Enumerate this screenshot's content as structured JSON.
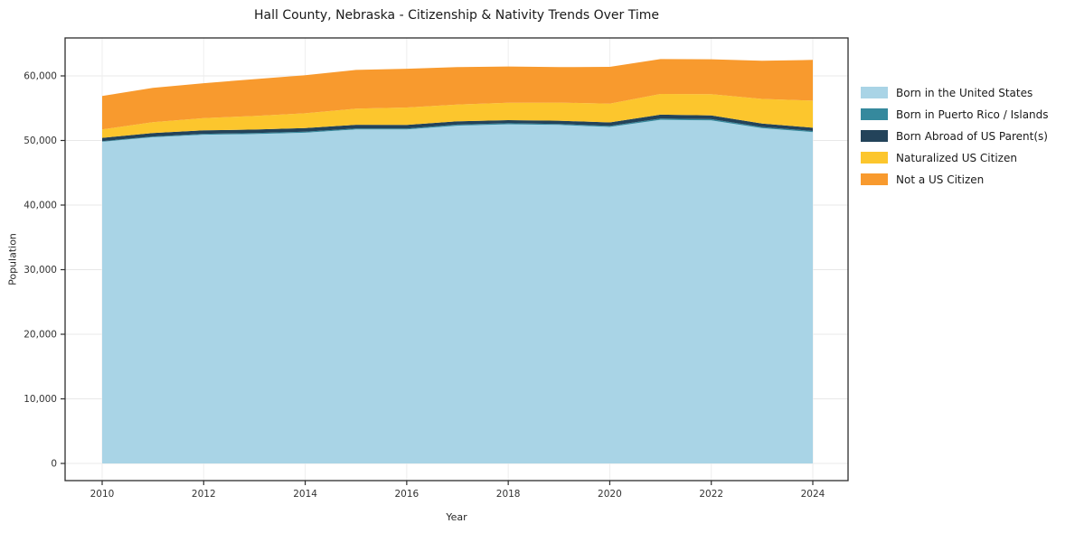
{
  "chart_data": {
    "type": "area",
    "stacked": true,
    "title": "Hall County, Nebraska - Citizenship & Nativity Trends Over Time",
    "xlabel": "Year",
    "ylabel": "Population",
    "x": [
      2010,
      2011,
      2012,
      2013,
      2014,
      2015,
      2016,
      2017,
      2018,
      2019,
      2020,
      2021,
      2022,
      2023,
      2024
    ],
    "xticks": [
      2010,
      2012,
      2014,
      2016,
      2018,
      2020,
      2022,
      2024
    ],
    "yticks": [
      0,
      10000,
      20000,
      30000,
      40000,
      50000,
      60000
    ],
    "ylim": [
      0,
      65700
    ],
    "grid": true,
    "legend_position": "right",
    "series": [
      {
        "name": "Born in the United States",
        "color": "#a9d4e6",
        "values": [
          49800,
          50500,
          50900,
          51000,
          51200,
          51700,
          51700,
          52300,
          52500,
          52400,
          52100,
          53200,
          53100,
          51900,
          51300
        ]
      },
      {
        "name": "Born in Puerto Rico / Islands",
        "color": "#35899d",
        "values": [
          100,
          120,
          130,
          140,
          150,
          160,
          150,
          160,
          170,
          160,
          150,
          200,
          200,
          180,
          170
        ]
      },
      {
        "name": "Born Abroad of US Parent(s)",
        "color": "#23435a",
        "values": [
          500,
          520,
          540,
          550,
          560,
          570,
          560,
          500,
          480,
          500,
          550,
          600,
          580,
          550,
          500
        ]
      },
      {
        "name": "Naturalized US Citizen",
        "color": "#fcc62d",
        "values": [
          1300,
          1700,
          1900,
          2100,
          2300,
          2500,
          2700,
          2600,
          2700,
          2800,
          2900,
          3200,
          3300,
          3800,
          4200
        ]
      },
      {
        "name": "Not a US Citizen",
        "color": "#f89a2e",
        "values": [
          5200,
          5300,
          5400,
          5700,
          5900,
          6000,
          6000,
          5800,
          5600,
          5500,
          5700,
          5400,
          5400,
          5900,
          6300
        ]
      }
    ]
  }
}
